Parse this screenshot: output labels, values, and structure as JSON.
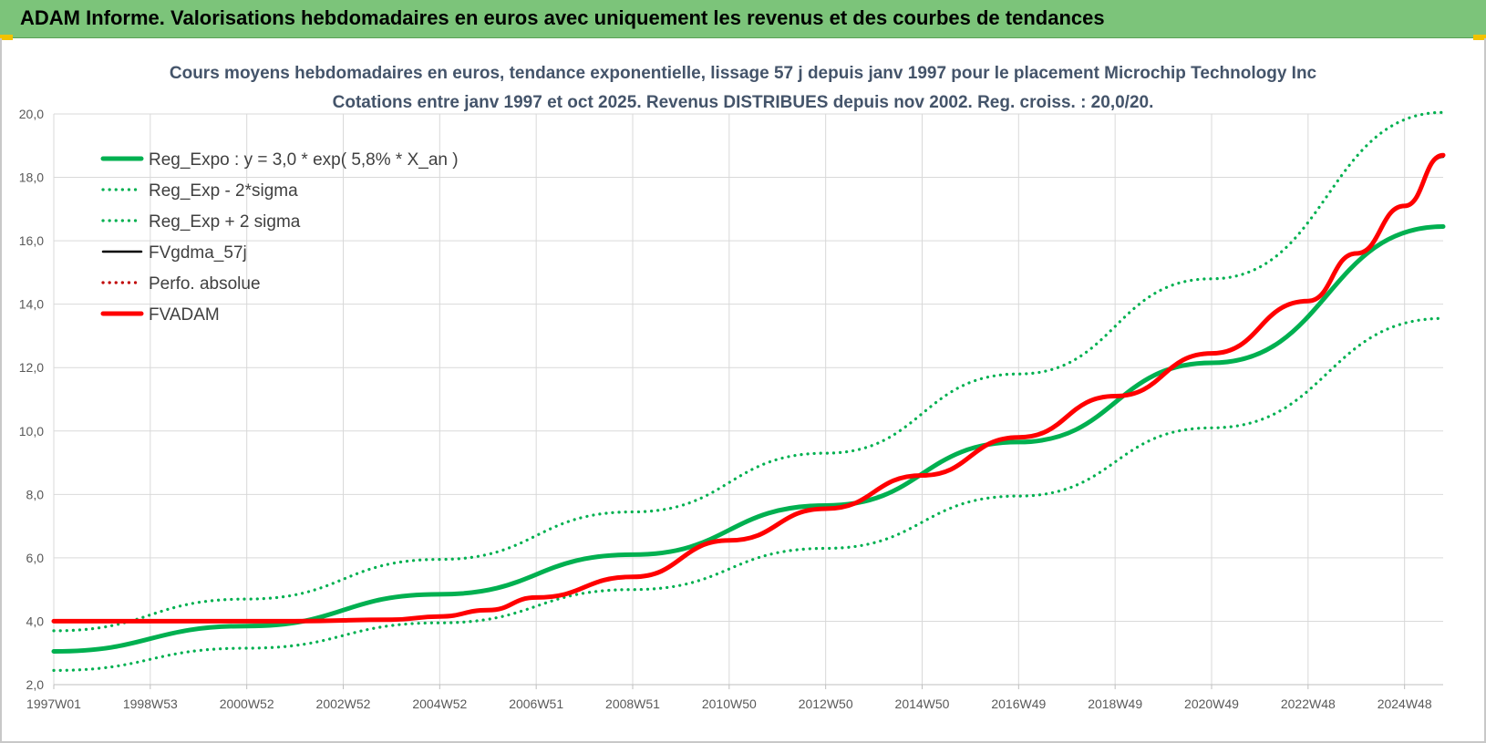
{
  "banner": {
    "title": "ADAM Informe. Valorisations hebdomadaires en euros avec uniquement les revenus et des courbes de tendances"
  },
  "colors": {
    "banner_bg": "#7cc47a",
    "reg_green": "#00b050",
    "fvadam_red": "#ff0000",
    "fvgdma_black": "#000000",
    "perfo_red_dotted": "#c00000",
    "grid": "#d9d9d9",
    "title_text": "#44546a"
  },
  "chart_data": {
    "type": "line",
    "title": "Cours moyens hebdomadaires en euros, tendance exponentielle, lissage 57 j depuis janv 1997 pour le placement Microchip Technology Inc",
    "subtitle": "Cotations entre janv 1997 et oct 2025. Revenus DISTRIBUES depuis nov 2002. Reg. croiss. : 20,0/20.",
    "xlabel": "",
    "ylabel": "",
    "ylim": [
      2.0,
      20.0
    ],
    "ytick_step": 2.0,
    "yticks": [
      "2,0",
      "4,0",
      "6,0",
      "8,0",
      "10,0",
      "12,0",
      "14,0",
      "16,0",
      "18,0",
      "20,0"
    ],
    "xrange_years": [
      1997.0,
      2025.8
    ],
    "xticks": [
      {
        "label": "1997W01",
        "year": 1997.0
      },
      {
        "label": "1998W53",
        "year": 1999.0
      },
      {
        "label": "2000W52",
        "year": 2001.0
      },
      {
        "label": "2002W52",
        "year": 2003.0
      },
      {
        "label": "2004W52",
        "year": 2005.0
      },
      {
        "label": "2006W51",
        "year": 2007.0
      },
      {
        "label": "2008W51",
        "year": 2009.0
      },
      {
        "label": "2010W50",
        "year": 2011.0
      },
      {
        "label": "2012W50",
        "year": 2013.0
      },
      {
        "label": "2014W50",
        "year": 2015.0
      },
      {
        "label": "2016W49",
        "year": 2017.0
      },
      {
        "label": "2018W49",
        "year": 2019.0
      },
      {
        "label": "2020W49",
        "year": 2021.0
      },
      {
        "label": "2022W48",
        "year": 2023.0
      },
      {
        "label": "2024W48",
        "year": 2025.0
      }
    ],
    "grid": true,
    "legend_position": "top-left",
    "series": [
      {
        "name": "Reg_Expo : y = 3,0 * exp( 5,8% *  X_an )",
        "style": "solid-thick",
        "color": "#00b050",
        "points": [
          [
            1997.0,
            3.05
          ],
          [
            2001.0,
            3.85
          ],
          [
            2005.0,
            4.85
          ],
          [
            2009.0,
            6.1
          ],
          [
            2013.0,
            7.65
          ],
          [
            2017.0,
            9.65
          ],
          [
            2021.0,
            12.15
          ],
          [
            2025.8,
            16.45
          ]
        ]
      },
      {
        "name": "Reg_Exp - 2*sigma",
        "style": "dotted",
        "color": "#00b050",
        "points": [
          [
            1997.0,
            2.45
          ],
          [
            2001.0,
            3.15
          ],
          [
            2005.0,
            3.95
          ],
          [
            2009.0,
            5.0
          ],
          [
            2013.0,
            6.3
          ],
          [
            2017.0,
            7.95
          ],
          [
            2021.0,
            10.1
          ],
          [
            2025.8,
            13.55
          ]
        ]
      },
      {
        "name": "Reg_Exp + 2 sigma",
        "style": "dotted",
        "color": "#00b050",
        "points": [
          [
            1997.0,
            3.7
          ],
          [
            2001.0,
            4.7
          ],
          [
            2005.0,
            5.95
          ],
          [
            2009.0,
            7.45
          ],
          [
            2013.0,
            9.3
          ],
          [
            2017.0,
            11.8
          ],
          [
            2021.0,
            14.8
          ],
          [
            2025.8,
            20.05
          ]
        ]
      },
      {
        "name": "FVgdma_57j",
        "style": "solid",
        "color": "#000000",
        "points": [
          [
            1997.0,
            4.0
          ],
          [
            2002.0,
            4.0
          ],
          [
            2004.0,
            4.05
          ],
          [
            2005.0,
            4.15
          ],
          [
            2006.0,
            4.35
          ],
          [
            2007.0,
            4.75
          ],
          [
            2009.0,
            5.4
          ],
          [
            2011.0,
            6.55
          ],
          [
            2013.0,
            7.55
          ],
          [
            2015.0,
            8.6
          ],
          [
            2017.0,
            9.8
          ],
          [
            2019.0,
            11.1
          ],
          [
            2021.0,
            12.45
          ],
          [
            2023.0,
            14.1
          ],
          [
            2024.0,
            15.6
          ],
          [
            2025.0,
            17.1
          ],
          [
            2025.8,
            18.65
          ]
        ]
      },
      {
        "name": "Perfo. absolue",
        "style": "dotted",
        "color": "#c00000",
        "points": [
          [
            1997.0,
            4.0
          ],
          [
            2002.0,
            4.0
          ],
          [
            2004.0,
            4.05
          ],
          [
            2005.0,
            4.15
          ],
          [
            2006.0,
            4.35
          ],
          [
            2007.0,
            4.75
          ],
          [
            2009.0,
            5.4
          ],
          [
            2011.0,
            6.55
          ],
          [
            2013.0,
            7.55
          ],
          [
            2015.0,
            8.6
          ],
          [
            2017.0,
            9.8
          ],
          [
            2019.0,
            11.1
          ],
          [
            2021.0,
            12.45
          ],
          [
            2023.0,
            14.1
          ],
          [
            2024.0,
            15.6
          ],
          [
            2025.0,
            17.1
          ],
          [
            2025.8,
            18.7
          ]
        ]
      },
      {
        "name": "FVADAM",
        "style": "solid-thick",
        "color": "#ff0000",
        "points": [
          [
            1997.0,
            4.0
          ],
          [
            2002.0,
            4.0
          ],
          [
            2004.0,
            4.05
          ],
          [
            2005.0,
            4.15
          ],
          [
            2006.0,
            4.35
          ],
          [
            2007.0,
            4.75
          ],
          [
            2009.0,
            5.4
          ],
          [
            2011.0,
            6.55
          ],
          [
            2013.0,
            7.55
          ],
          [
            2015.0,
            8.6
          ],
          [
            2017.0,
            9.8
          ],
          [
            2019.0,
            11.1
          ],
          [
            2021.0,
            12.45
          ],
          [
            2023.0,
            14.1
          ],
          [
            2024.0,
            15.6
          ],
          [
            2025.0,
            17.1
          ],
          [
            2025.8,
            18.7
          ]
        ]
      }
    ]
  }
}
